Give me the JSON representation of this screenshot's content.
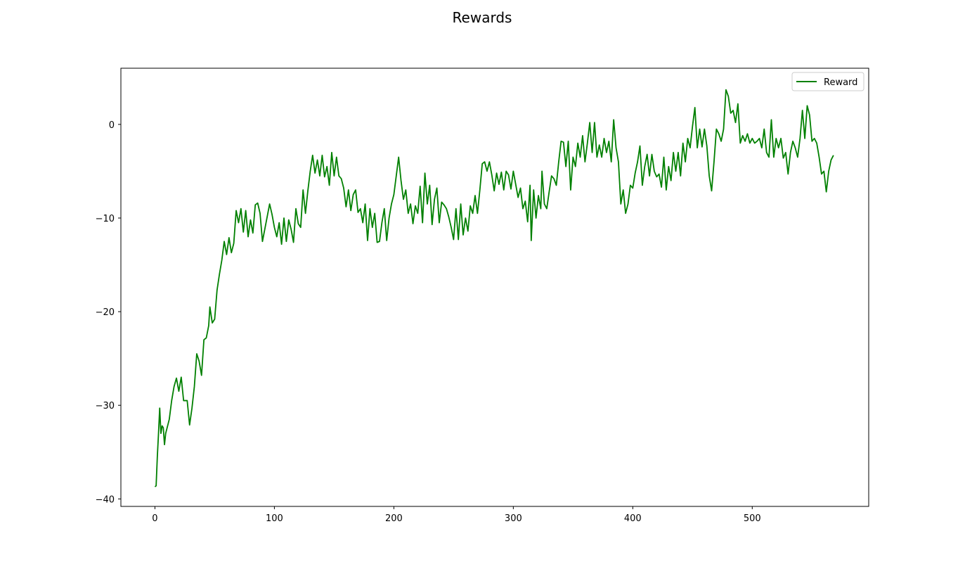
{
  "colors": {
    "line": "#008000",
    "axes": "#000000",
    "background": "#ffffff",
    "legend_border": "#cccccc"
  },
  "chart_data": {
    "type": "line",
    "title": "Rewards",
    "xlabel": "",
    "ylabel": "",
    "xlim": [
      -28.5,
      597.5
    ],
    "ylim": [
      -40.8,
      6.0
    ],
    "xticks": [
      0,
      100,
      200,
      300,
      400,
      500
    ],
    "yticks": [
      -40,
      -30,
      -20,
      -10,
      0
    ],
    "xtick_labels": [
      "0",
      "100",
      "200",
      "300",
      "400",
      "500"
    ],
    "ytick_labels": [
      "−40",
      "−30",
      "−20",
      "−10",
      "0"
    ],
    "legend": {
      "position": "top-right",
      "entries": [
        "Reward"
      ]
    },
    "grid": false,
    "series": [
      {
        "name": "Reward",
        "keypoints": [
          [
            0,
            -38.7
          ],
          [
            1,
            -38.6
          ],
          [
            2,
            -35.5
          ],
          [
            3,
            -33.0
          ],
          [
            4,
            -30.3
          ],
          [
            5,
            -33.0
          ],
          [
            6,
            -32.2
          ],
          [
            7,
            -32.4
          ],
          [
            8,
            -34.2
          ],
          [
            9,
            -33.0
          ],
          [
            12,
            -31.5
          ],
          [
            14,
            -29.5
          ],
          [
            16,
            -28.0
          ],
          [
            18,
            -27.1
          ],
          [
            20,
            -28.5
          ],
          [
            22,
            -27.0
          ],
          [
            24,
            -29.5
          ],
          [
            27,
            -29.5
          ],
          [
            29,
            -32.1
          ],
          [
            31,
            -30.3
          ],
          [
            33,
            -28.0
          ],
          [
            35,
            -24.5
          ],
          [
            37,
            -25.3
          ],
          [
            39,
            -26.8
          ],
          [
            41,
            -23.0
          ],
          [
            43,
            -22.8
          ],
          [
            45,
            -21.5
          ],
          [
            46,
            -19.5
          ],
          [
            48,
            -21.2
          ],
          [
            50,
            -20.8
          ],
          [
            52,
            -17.7
          ],
          [
            54,
            -16.0
          ],
          [
            56,
            -14.5
          ],
          [
            58,
            -12.5
          ],
          [
            60,
            -13.9
          ],
          [
            62,
            -12.1
          ],
          [
            64,
            -13.7
          ],
          [
            66,
            -12.7
          ],
          [
            68,
            -9.2
          ],
          [
            70,
            -10.5
          ],
          [
            72,
            -9.0
          ],
          [
            74,
            -11.5
          ],
          [
            76,
            -9.2
          ],
          [
            78,
            -12.0
          ],
          [
            80,
            -10.2
          ],
          [
            82,
            -11.6
          ],
          [
            84,
            -8.6
          ],
          [
            86,
            -8.4
          ],
          [
            88,
            -9.5
          ],
          [
            90,
            -12.5
          ],
          [
            93,
            -10.5
          ],
          [
            96,
            -8.5
          ],
          [
            98,
            -9.6
          ],
          [
            100,
            -11.0
          ],
          [
            102,
            -12.0
          ],
          [
            104,
            -10.5
          ],
          [
            106,
            -12.8
          ],
          [
            108,
            -10.0
          ],
          [
            110,
            -12.5
          ],
          [
            112,
            -10.2
          ],
          [
            114,
            -11.2
          ],
          [
            116,
            -12.6
          ],
          [
            118,
            -9.0
          ],
          [
            120,
            -10.6
          ],
          [
            122,
            -11.0
          ],
          [
            124,
            -7.0
          ],
          [
            126,
            -9.5
          ],
          [
            128,
            -7.1
          ],
          [
            130,
            -5.0
          ],
          [
            132,
            -3.3
          ],
          [
            134,
            -5.2
          ],
          [
            136,
            -3.8
          ],
          [
            138,
            -5.5
          ],
          [
            140,
            -3.3
          ],
          [
            142,
            -5.6
          ],
          [
            144,
            -4.5
          ],
          [
            146,
            -6.5
          ],
          [
            148,
            -3.0
          ],
          [
            150,
            -5.5
          ],
          [
            152,
            -3.5
          ],
          [
            154,
            -5.5
          ],
          [
            156,
            -5.8
          ],
          [
            158,
            -6.8
          ],
          [
            160,
            -8.8
          ],
          [
            162,
            -7.0
          ],
          [
            164,
            -9.2
          ],
          [
            166,
            -7.5
          ],
          [
            168,
            -7.0
          ],
          [
            170,
            -9.4
          ],
          [
            172,
            -9.0
          ],
          [
            174,
            -10.5
          ],
          [
            176,
            -8.5
          ],
          [
            178,
            -12.4
          ],
          [
            180,
            -9.0
          ],
          [
            182,
            -11.0
          ],
          [
            184,
            -9.5
          ],
          [
            186,
            -12.6
          ],
          [
            188,
            -12.5
          ],
          [
            190,
            -10.5
          ],
          [
            192,
            -9.0
          ],
          [
            194,
            -12.4
          ],
          [
            196,
            -10.0
          ],
          [
            198,
            -8.5
          ],
          [
            200,
            -7.5
          ],
          [
            202,
            -5.5
          ],
          [
            204,
            -3.5
          ],
          [
            206,
            -6.0
          ],
          [
            208,
            -8.0
          ],
          [
            210,
            -7.0
          ],
          [
            212,
            -9.5
          ],
          [
            214,
            -8.5
          ],
          [
            216,
            -10.6
          ],
          [
            218,
            -8.7
          ],
          [
            220,
            -9.5
          ],
          [
            222,
            -6.6
          ],
          [
            224,
            -10.5
          ],
          [
            226,
            -5.2
          ],
          [
            228,
            -8.5
          ],
          [
            230,
            -6.5
          ],
          [
            232,
            -10.7
          ],
          [
            234,
            -8.0
          ],
          [
            236,
            -6.8
          ],
          [
            238,
            -10.5
          ],
          [
            240,
            -8.3
          ],
          [
            242,
            -8.6
          ],
          [
            244,
            -9.0
          ],
          [
            246,
            -9.9
          ],
          [
            248,
            -11.0
          ],
          [
            250,
            -12.3
          ],
          [
            252,
            -9.0
          ],
          [
            254,
            -12.3
          ],
          [
            256,
            -8.5
          ],
          [
            258,
            -11.8
          ],
          [
            260,
            -10.0
          ],
          [
            262,
            -11.4
          ],
          [
            264,
            -8.7
          ],
          [
            266,
            -9.5
          ],
          [
            268,
            -7.6
          ],
          [
            270,
            -9.5
          ],
          [
            272,
            -7.0
          ],
          [
            274,
            -4.2
          ],
          [
            276,
            -4.0
          ],
          [
            278,
            -5.0
          ],
          [
            280,
            -4.0
          ],
          [
            282,
            -5.4
          ],
          [
            284,
            -7.1
          ],
          [
            286,
            -5.2
          ],
          [
            288,
            -6.4
          ],
          [
            290,
            -5.1
          ],
          [
            292,
            -7.0
          ],
          [
            294,
            -5.0
          ],
          [
            296,
            -5.4
          ],
          [
            298,
            -6.9
          ],
          [
            300,
            -5.0
          ],
          [
            302,
            -6.4
          ],
          [
            304,
            -7.8
          ],
          [
            306,
            -6.8
          ],
          [
            308,
            -9.0
          ],
          [
            310,
            -8.2
          ],
          [
            312,
            -10.4
          ],
          [
            314,
            -6.5
          ],
          [
            315,
            -12.4
          ],
          [
            317,
            -7.0
          ],
          [
            319,
            -10.0
          ],
          [
            321,
            -7.6
          ],
          [
            323,
            -9.0
          ],
          [
            324,
            -5.0
          ],
          [
            326,
            -8.5
          ],
          [
            328,
            -9.0
          ],
          [
            330,
            -7.2
          ],
          [
            332,
            -5.5
          ],
          [
            334,
            -5.8
          ],
          [
            336,
            -6.5
          ],
          [
            338,
            -4.0
          ],
          [
            340,
            -1.8
          ],
          [
            342,
            -1.9
          ],
          [
            344,
            -4.5
          ],
          [
            346,
            -1.8
          ],
          [
            348,
            -7.0
          ],
          [
            350,
            -3.5
          ],
          [
            352,
            -4.5
          ],
          [
            354,
            -2.0
          ],
          [
            356,
            -3.5
          ],
          [
            358,
            -1.2
          ],
          [
            360,
            -4.0
          ],
          [
            362,
            -2.0
          ],
          [
            364,
            0.2
          ],
          [
            366,
            -3.0
          ],
          [
            368,
            0.2
          ],
          [
            370,
            -3.5
          ],
          [
            372,
            -2.2
          ],
          [
            374,
            -3.5
          ],
          [
            376,
            -1.5
          ],
          [
            378,
            -3.0
          ],
          [
            380,
            -1.8
          ],
          [
            382,
            -4.0
          ],
          [
            384,
            0.5
          ],
          [
            386,
            -2.5
          ],
          [
            388,
            -4.0
          ],
          [
            390,
            -8.5
          ],
          [
            392,
            -7.0
          ],
          [
            394,
            -9.5
          ],
          [
            396,
            -8.5
          ],
          [
            398,
            -6.5
          ],
          [
            400,
            -6.8
          ],
          [
            402,
            -5.2
          ],
          [
            404,
            -4.0
          ],
          [
            406,
            -2.3
          ],
          [
            408,
            -6.5
          ],
          [
            410,
            -4.5
          ],
          [
            412,
            -3.2
          ],
          [
            414,
            -5.5
          ],
          [
            416,
            -3.2
          ],
          [
            418,
            -5.0
          ],
          [
            420,
            -5.6
          ],
          [
            422,
            -5.3
          ],
          [
            424,
            -6.7
          ],
          [
            426,
            -3.5
          ],
          [
            428,
            -7.0
          ],
          [
            430,
            -4.5
          ],
          [
            432,
            -6.0
          ],
          [
            434,
            -3.0
          ],
          [
            436,
            -5.0
          ],
          [
            438,
            -3.0
          ],
          [
            440,
            -5.5
          ],
          [
            442,
            -2.0
          ],
          [
            444,
            -4.0
          ],
          [
            446,
            -1.5
          ],
          [
            448,
            -2.5
          ],
          [
            450,
            -0.2
          ],
          [
            452,
            1.8
          ],
          [
            454,
            -2.5
          ],
          [
            456,
            -0.5
          ],
          [
            458,
            -2.4
          ],
          [
            460,
            -0.5
          ],
          [
            462,
            -2.3
          ],
          [
            464,
            -5.5
          ],
          [
            466,
            -7.1
          ],
          [
            468,
            -4.0
          ],
          [
            470,
            -0.5
          ],
          [
            472,
            -1.0
          ],
          [
            474,
            -1.8
          ],
          [
            476,
            -0.5
          ],
          [
            478,
            3.7
          ],
          [
            480,
            3.0
          ],
          [
            482,
            1.2
          ],
          [
            484,
            1.5
          ],
          [
            486,
            0.2
          ],
          [
            488,
            2.2
          ],
          [
            490,
            -2.0
          ],
          [
            492,
            -1.2
          ],
          [
            494,
            -1.8
          ],
          [
            496,
            -1.0
          ],
          [
            498,
            -2.0
          ],
          [
            500,
            -1.5
          ],
          [
            502,
            -2.0
          ],
          [
            504,
            -1.8
          ],
          [
            506,
            -1.5
          ],
          [
            508,
            -2.5
          ],
          [
            510,
            -0.5
          ],
          [
            512,
            -3.0
          ],
          [
            514,
            -3.5
          ],
          [
            516,
            0.5
          ],
          [
            518,
            -3.5
          ],
          [
            520,
            -1.5
          ],
          [
            522,
            -2.5
          ],
          [
            524,
            -1.5
          ],
          [
            526,
            -3.6
          ],
          [
            528,
            -3.0
          ],
          [
            530,
            -5.3
          ],
          [
            532,
            -3.0
          ],
          [
            534,
            -1.8
          ],
          [
            536,
            -2.5
          ],
          [
            538,
            -3.5
          ],
          [
            540,
            -1.5
          ],
          [
            542,
            1.5
          ],
          [
            544,
            -1.5
          ],
          [
            546,
            2.0
          ],
          [
            548,
            1.0
          ],
          [
            550,
            -1.8
          ],
          [
            552,
            -1.5
          ],
          [
            554,
            -2.0
          ],
          [
            556,
            -3.5
          ],
          [
            558,
            -5.3
          ],
          [
            560,
            -5.0
          ],
          [
            562,
            -7.2
          ],
          [
            564,
            -5.0
          ],
          [
            566,
            -3.8
          ],
          [
            568,
            -3.3
          ]
        ]
      }
    ]
  }
}
